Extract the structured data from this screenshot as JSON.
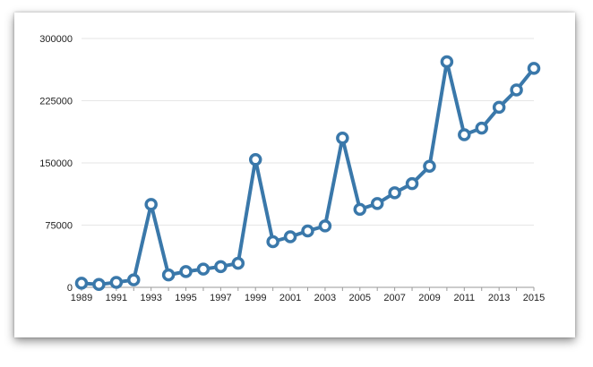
{
  "chart_data": {
    "type": "line",
    "title": "",
    "xlabel": "",
    "ylabel": "",
    "x": [
      1989,
      1990,
      1991,
      1992,
      1993,
      1994,
      1995,
      1996,
      1997,
      1998,
      1999,
      2000,
      2001,
      2002,
      2003,
      2004,
      2005,
      2006,
      2007,
      2008,
      2009,
      2010,
      2011,
      2012,
      2013,
      2014,
      2015
    ],
    "series": [
      {
        "values": [
          5000,
          3500,
          6000,
          9000,
          100000,
          15000,
          19000,
          22000,
          25000,
          29000,
          154000,
          55000,
          61000,
          68000,
          74000,
          180000,
          94000,
          101000,
          114000,
          125000,
          146000,
          272000,
          184000,
          192000,
          217000,
          238000,
          264000
        ]
      }
    ],
    "ylim": [
      0,
      300000
    ],
    "yticks": [
      "0",
      "75000",
      "150000",
      "225000",
      "300000"
    ],
    "xticks": [
      "1989",
      "1991",
      "1993",
      "1995",
      "1997",
      "1999",
      "2001",
      "2003",
      "2005",
      "2007",
      "2009",
      "2011",
      "2013",
      "2015"
    ],
    "grid": true,
    "legend": "none",
    "colors": {
      "line": "#3a78aa",
      "marker_fill": "#ffffff",
      "grid": "#e6e6e6",
      "axis": "#9a9a9a"
    }
  }
}
